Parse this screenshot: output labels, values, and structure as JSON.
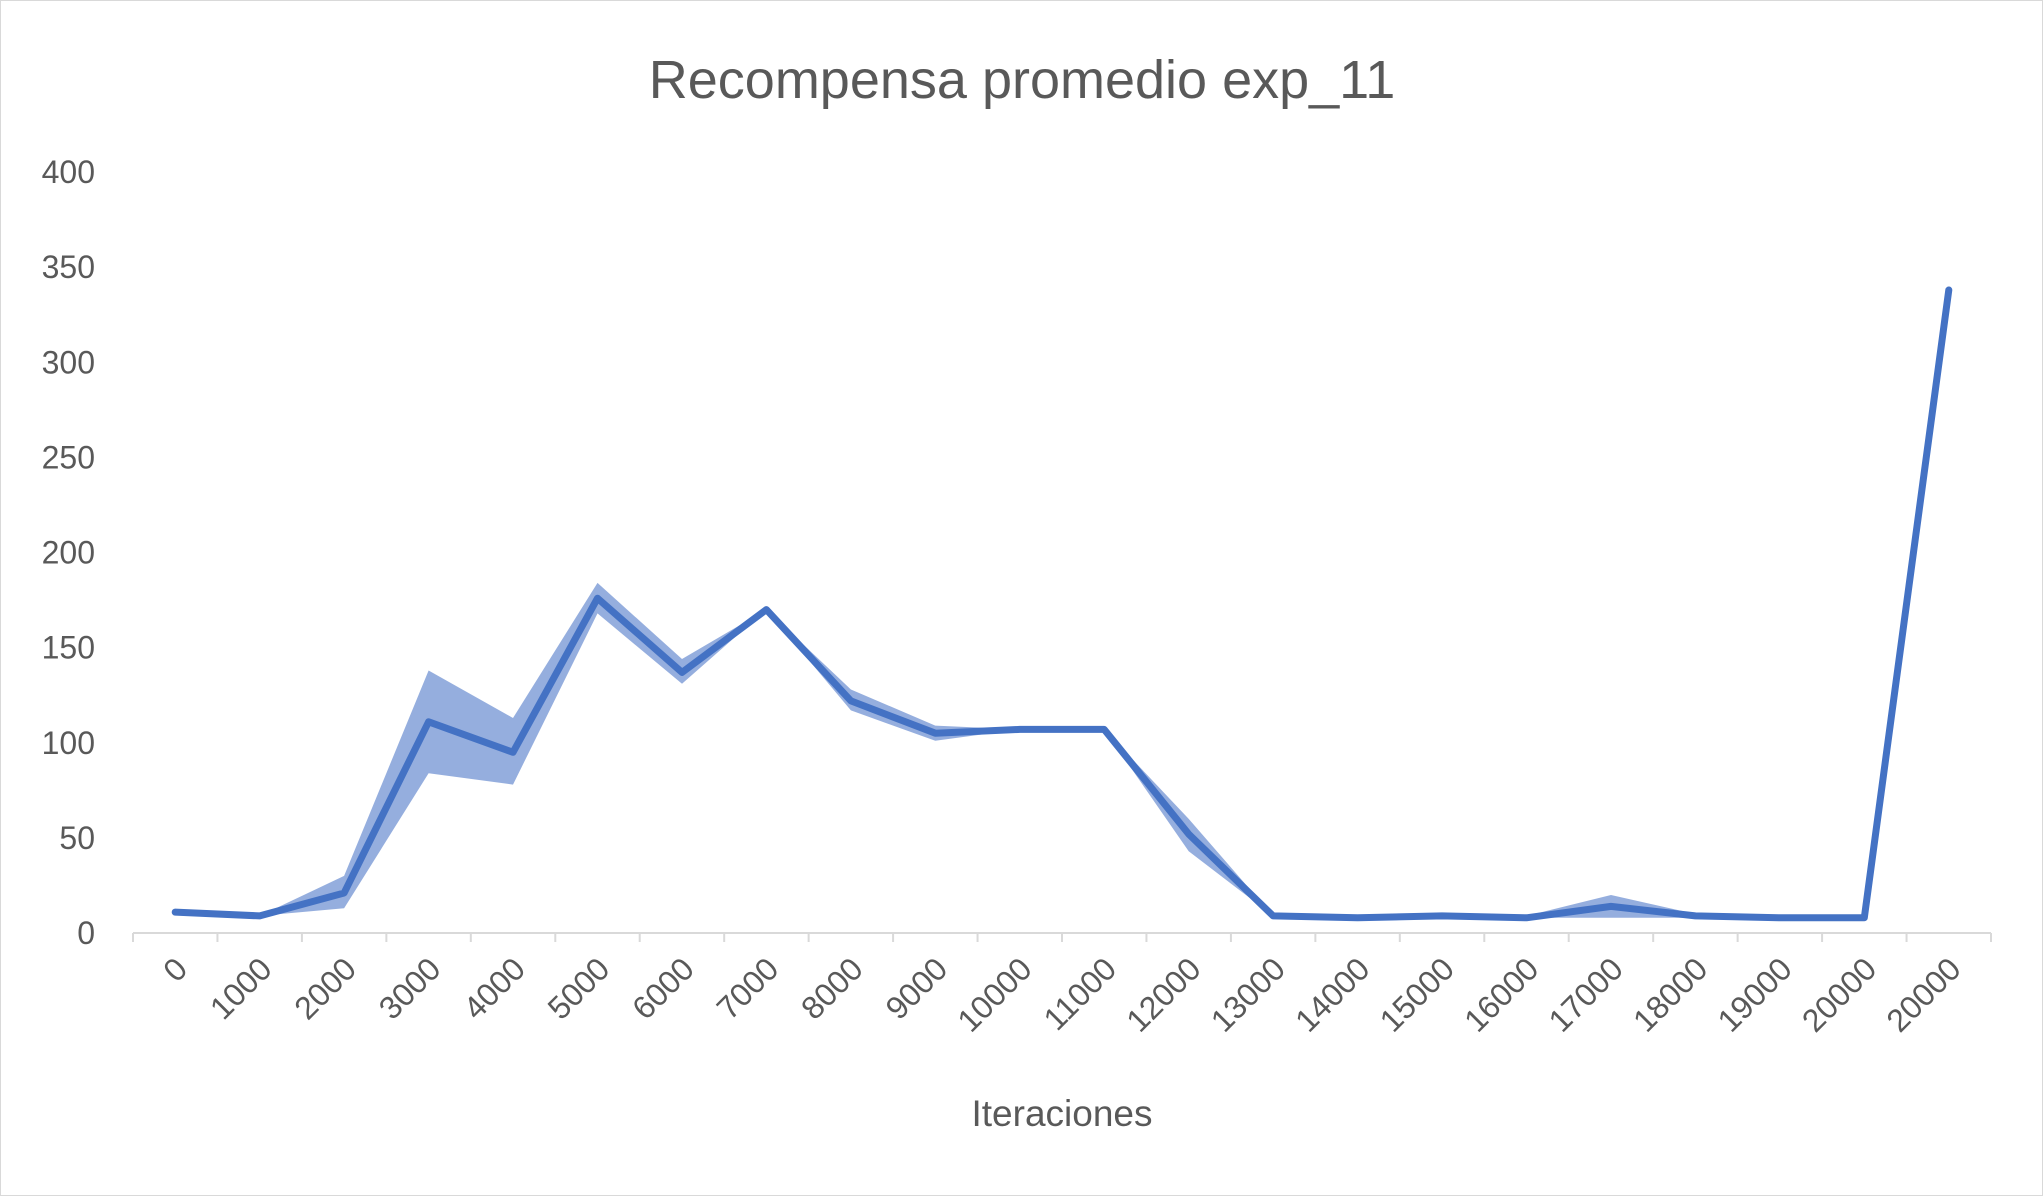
{
  "chart_data": {
    "type": "line",
    "title": "Recompensa promedio exp_11",
    "xlabel": "Iteraciones",
    "ylabel": "",
    "ylim": [
      0,
      400
    ],
    "yticks": [
      0,
      50,
      100,
      150,
      200,
      250,
      300,
      350,
      400
    ],
    "categories": [
      "0",
      "1000",
      "2000",
      "3000",
      "4000",
      "5000",
      "6000",
      "7000",
      "8000",
      "9000",
      "10000",
      "11000",
      "12000",
      "13000",
      "14000",
      "15000",
      "16000",
      "17000",
      "18000",
      "19000",
      "20000",
      "20000"
    ],
    "series": [
      {
        "values": [
          11,
          9,
          21,
          111,
          95,
          176,
          137,
          170,
          122,
          105,
          107,
          107,
          52,
          9,
          8,
          9,
          8,
          14,
          9,
          8,
          8,
          338
        ]
      }
    ],
    "band": {
      "upper": [
        11,
        9,
        30,
        138,
        113,
        184,
        144,
        170,
        128,
        109,
        107,
        107,
        60,
        9,
        8,
        9,
        9,
        20,
        10,
        8,
        8,
        338
      ],
      "lower": [
        11,
        9,
        13,
        84,
        78,
        168,
        131,
        170,
        117,
        101,
        107,
        107,
        43,
        9,
        8,
        9,
        8,
        8,
        8,
        8,
        8,
        338
      ]
    },
    "grid": false,
    "legend": "none",
    "colors": {
      "line": "#4472c4",
      "band": "#8faadc",
      "axis": "#d9d9d9",
      "text": "#595959"
    }
  }
}
